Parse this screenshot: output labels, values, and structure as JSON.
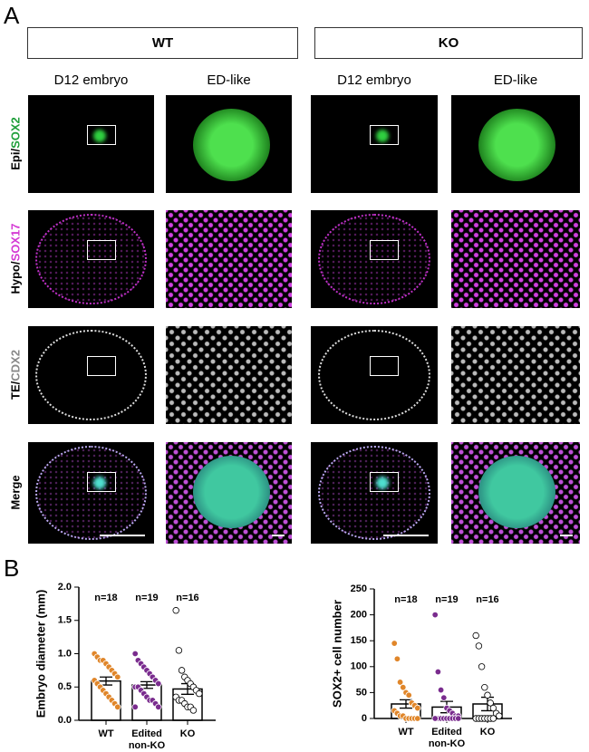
{
  "panel_a": {
    "letter": "A",
    "groups": [
      "WT",
      "KO"
    ],
    "columns": [
      "D12 embryo",
      "ED-like",
      "D12 embryo",
      "ED-like"
    ],
    "rows": [
      {
        "tissue": "Epi/",
        "marker": "SOX2"
      },
      {
        "tissue": "Hypo/",
        "marker": "SOX17"
      },
      {
        "tissue": "TE/",
        "marker": "CDX2"
      },
      {
        "tissue": "Merge"
      }
    ]
  },
  "panel_b": {
    "letter": "B"
  },
  "chart_data": [
    {
      "type": "bar",
      "ylabel": "Embryo diameter (mm)",
      "categories": [
        "WT",
        "Edited\nnon-KO",
        "KO"
      ],
      "n_labels": [
        "n=18",
        "n=19",
        "n=16"
      ],
      "values": [
        0.59,
        0.53,
        0.47
      ],
      "errors": [
        0.06,
        0.05,
        0.08
      ],
      "colors": [
        "#e0862a",
        "#7a2c8e",
        "#ffffff"
      ],
      "points": [
        [
          1.0,
          0.95,
          0.9,
          0.9,
          0.85,
          0.8,
          0.75,
          0.7,
          0.65,
          0.6,
          0.55,
          0.5,
          0.45,
          0.4,
          0.35,
          0.3,
          0.25,
          0.2
        ],
        [
          1.0,
          0.9,
          0.85,
          0.8,
          0.75,
          0.7,
          0.65,
          0.6,
          0.55,
          0.5,
          0.5,
          0.45,
          0.4,
          0.35,
          0.3,
          0.3,
          0.25,
          0.2,
          0.2
        ],
        [
          1.65,
          1.05,
          0.75,
          0.65,
          0.6,
          0.55,
          0.5,
          0.45,
          0.4,
          0.35,
          0.3,
          0.3,
          0.25,
          0.2,
          0.2,
          0.15
        ]
      ],
      "ylim": [
        0,
        2
      ],
      "yticks": [
        {
          "value": 0,
          "label": "0.0"
        },
        0.5,
        {
          "value": 1,
          "label": "1.0"
        },
        1.5,
        {
          "value": 2,
          "label": "2.0"
        }
      ]
    },
    {
      "type": "bar",
      "ylabel": "SOX2+ cell number",
      "categories": [
        "WT",
        "Edited\nnon-KO",
        "KO"
      ],
      "n_labels": [
        "n=18",
        "n=19",
        "n=16"
      ],
      "values": [
        28,
        22,
        28
      ],
      "errors": [
        8,
        11,
        13
      ],
      "colors": [
        "#e0862a",
        "#7a2c8e",
        "#ffffff"
      ],
      "points": [
        [
          145,
          115,
          70,
          60,
          50,
          45,
          30,
          25,
          20,
          15,
          10,
          5,
          5,
          0,
          0,
          0,
          0,
          0
        ],
        [
          200,
          90,
          55,
          40,
          20,
          15,
          10,
          5,
          5,
          0,
          0,
          0,
          0,
          0,
          0,
          0,
          0,
          0,
          0
        ],
        [
          160,
          140,
          100,
          60,
          45,
          30,
          20,
          10,
          5,
          0,
          0,
          0,
          0,
          0,
          0,
          0
        ]
      ],
      "ylim": [
        0,
        250
      ],
      "yticks": [
        0,
        50,
        100,
        150,
        200,
        250
      ]
    }
  ]
}
